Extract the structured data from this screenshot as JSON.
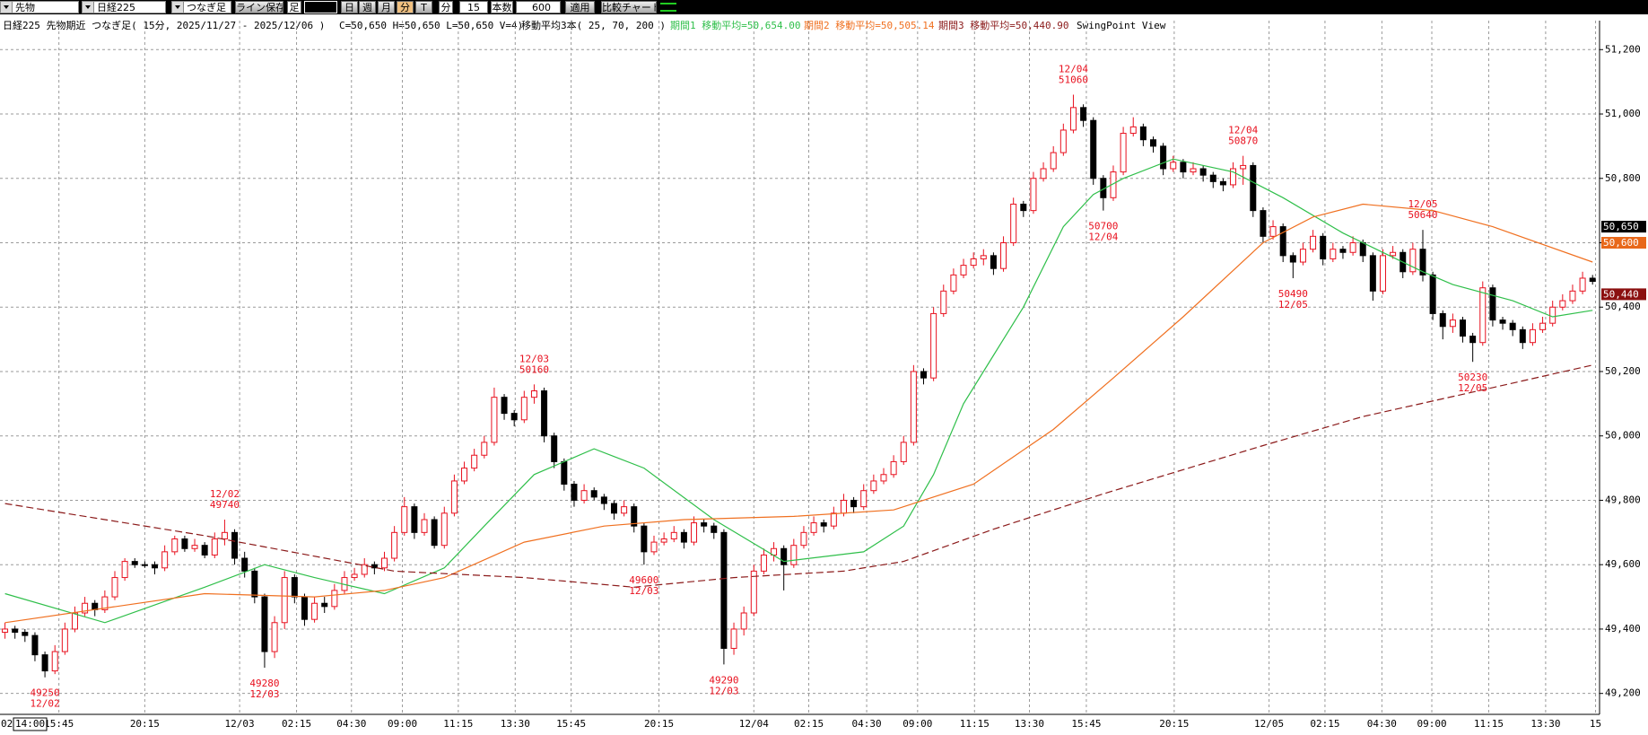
{
  "toolbar": {
    "market": "先物",
    "index": "日経225",
    "bar_type": "つなぎ足",
    "save": "ライン保存",
    "foot": "足",
    "periods": [
      "日",
      "週",
      "月",
      "分",
      "T"
    ],
    "unit": "分",
    "interval": "15",
    "count_label": "本数",
    "count": "600",
    "apply": "適用",
    "compare": "比較チャート"
  },
  "chart_data": {
    "type": "candlestick",
    "title": "日経225 先物期近 つなぎ足( 15分, 2025/11/27 - 2025/12/06 )",
    "ohlc_info": "C=50,650 H=50,650 L=50,650 V=4)",
    "ma_info": "移動平均3本( 25, 70, 200 )",
    "view_label": "SwingPoint View",
    "cursor_date": "02",
    "cursor_time": "14:00",
    "up_color": "#e8101e",
    "down_color": "#000000",
    "ylim": [
      49135,
      51290
    ],
    "yticks": [
      {
        "value": 49200,
        "label": "49,200"
      },
      {
        "value": 49400,
        "label": "49,400"
      },
      {
        "value": 49600,
        "label": "49,600"
      },
      {
        "value": 49800,
        "label": "49,800"
      },
      {
        "value": 50000,
        "label": "50,000"
      },
      {
        "value": 50200,
        "label": "50,200"
      },
      {
        "value": 50400,
        "label": "50,400"
      },
      {
        "value": 50600,
        "label": "50,600"
      },
      {
        "value": 50800,
        "label": "50,800"
      },
      {
        "value": 51000,
        "label": "51,000"
      },
      {
        "value": 51200,
        "label": "51,200"
      }
    ],
    "xlim": [
      -0.5,
      159.7
    ],
    "xticks": [
      {
        "value": 5.4,
        "label": "15:45"
      },
      {
        "value": 14,
        "label": "20:15"
      },
      {
        "value": 23.5,
        "label": "12/03"
      },
      {
        "value": 29.2,
        "label": "02:15"
      },
      {
        "value": 34.7,
        "label": "04:30"
      },
      {
        "value": 39.8,
        "label": "09:00"
      },
      {
        "value": 45.4,
        "label": "11:15"
      },
      {
        "value": 51.1,
        "label": "13:30"
      },
      {
        "value": 56.7,
        "label": "15:45"
      },
      {
        "value": 65.5,
        "label": "20:15"
      },
      {
        "value": 75,
        "label": "12/04"
      },
      {
        "value": 80.5,
        "label": "02:15"
      },
      {
        "value": 86.3,
        "label": "04:30"
      },
      {
        "value": 91.4,
        "label": "09:00"
      },
      {
        "value": 97.1,
        "label": "11:15"
      },
      {
        "value": 102.6,
        "label": "13:30"
      },
      {
        "value": 108.3,
        "label": "15:45"
      },
      {
        "value": 117.1,
        "label": "20:15"
      },
      {
        "value": 126.6,
        "label": "12/05"
      },
      {
        "value": 132.2,
        "label": "02:15"
      },
      {
        "value": 137.9,
        "label": "04:30"
      },
      {
        "value": 142.9,
        "label": "09:00"
      },
      {
        "value": 148.6,
        "label": "11:15"
      },
      {
        "value": 154.3,
        "label": "13:30"
      },
      {
        "value": 159.3,
        "label": "15"
      }
    ],
    "grid": true,
    "ohlc": [
      [
        49390,
        49420,
        49370,
        49400
      ],
      [
        49400,
        49410,
        49370,
        49390
      ],
      [
        49390,
        49400,
        49360,
        49380
      ],
      [
        49380,
        49390,
        49300,
        49320
      ],
      [
        49320,
        49330,
        49250,
        49270
      ],
      [
        49270,
        49350,
        49260,
        49330
      ],
      [
        49330,
        49420,
        49320,
        49400
      ],
      [
        49400,
        49470,
        49390,
        49450
      ],
      [
        49450,
        49500,
        49440,
        49480
      ],
      [
        49480,
        49490,
        49440,
        49460
      ],
      [
        49460,
        49520,
        49450,
        49500
      ],
      [
        49500,
        49580,
        49490,
        49560
      ],
      [
        49560,
        49620,
        49550,
        49610
      ],
      [
        49610,
        49620,
        49590,
        49600
      ],
      [
        49600,
        49610,
        49590,
        49600
      ],
      [
        49600,
        49610,
        49570,
        49590
      ],
      [
        49590,
        49660,
        49580,
        49640
      ],
      [
        49640,
        49690,
        49630,
        49680
      ],
      [
        49680,
        49690,
        49640,
        49650
      ],
      [
        49650,
        49680,
        49640,
        49660
      ],
      [
        49660,
        49670,
        49620,
        49630
      ],
      [
        49630,
        49700,
        49620,
        49680
      ],
      [
        49680,
        49740,
        49660,
        49700
      ],
      [
        49700,
        49710,
        49600,
        49620
      ],
      [
        49620,
        49640,
        49560,
        49580
      ],
      [
        49580,
        49590,
        49480,
        49500
      ],
      [
        49500,
        49510,
        49280,
        49330
      ],
      [
        49330,
        49440,
        49310,
        49420
      ],
      [
        49420,
        49580,
        49400,
        49560
      ],
      [
        49560,
        49570,
        49480,
        49500
      ],
      [
        49500,
        49510,
        49410,
        49430
      ],
      [
        49430,
        49500,
        49420,
        49480
      ],
      [
        49480,
        49500,
        49450,
        49470
      ],
      [
        49470,
        49540,
        49460,
        49520
      ],
      [
        49520,
        49580,
        49510,
        49560
      ],
      [
        49560,
        49590,
        49550,
        49570
      ],
      [
        49570,
        49620,
        49560,
        49600
      ],
      [
        49600,
        49610,
        49570,
        49590
      ],
      [
        49590,
        49640,
        49580,
        49620
      ],
      [
        49620,
        49720,
        49610,
        49700
      ],
      [
        49700,
        49810,
        49690,
        49780
      ],
      [
        49780,
        49790,
        49680,
        49700
      ],
      [
        49700,
        49760,
        49690,
        49740
      ],
      [
        49740,
        49750,
        49650,
        49660
      ],
      [
        49660,
        49780,
        49650,
        49760
      ],
      [
        49760,
        49880,
        49750,
        49860
      ],
      [
        49860,
        49920,
        49850,
        49900
      ],
      [
        49900,
        49960,
        49890,
        49940
      ],
      [
        49940,
        50000,
        49930,
        49980
      ],
      [
        49980,
        50150,
        49970,
        50120
      ],
      [
        50120,
        50130,
        50050,
        50070
      ],
      [
        50070,
        50080,
        50030,
        50050
      ],
      [
        50050,
        50140,
        50040,
        50120
      ],
      [
        50120,
        50160,
        50100,
        50140
      ],
      [
        50140,
        50150,
        49980,
        50000
      ],
      [
        50000,
        50010,
        49900,
        49920
      ],
      [
        49920,
        49930,
        49830,
        49850
      ],
      [
        49850,
        49860,
        49780,
        49800
      ],
      [
        49800,
        49850,
        49790,
        49830
      ],
      [
        49830,
        49840,
        49800,
        49810
      ],
      [
        49810,
        49820,
        49770,
        49790
      ],
      [
        49790,
        49800,
        49740,
        49760
      ],
      [
        49760,
        49800,
        49750,
        49780
      ],
      [
        49780,
        49790,
        49700,
        49720
      ],
      [
        49720,
        49730,
        49600,
        49640
      ],
      [
        49640,
        49690,
        49630,
        49670
      ],
      [
        49670,
        49700,
        49660,
        49680
      ],
      [
        49680,
        49720,
        49670,
        49700
      ],
      [
        49700,
        49710,
        49650,
        49670
      ],
      [
        49670,
        49750,
        49660,
        49730
      ],
      [
        49730,
        49740,
        49700,
        49720
      ],
      [
        49720,
        49730,
        49680,
        49700
      ],
      [
        49700,
        49710,
        49290,
        49340
      ],
      [
        49340,
        49420,
        49320,
        49400
      ],
      [
        49400,
        49470,
        49380,
        49450
      ],
      [
        49450,
        49600,
        49440,
        49580
      ],
      [
        49580,
        49650,
        49570,
        49630
      ],
      [
        49630,
        49670,
        49610,
        49650
      ],
      [
        49650,
        49660,
        49520,
        49600
      ],
      [
        49600,
        49680,
        49590,
        49660
      ],
      [
        49660,
        49720,
        49650,
        49700
      ],
      [
        49700,
        49750,
        49690,
        49730
      ],
      [
        49730,
        49740,
        49700,
        49720
      ],
      [
        49720,
        49780,
        49710,
        49760
      ],
      [
        49760,
        49820,
        49750,
        49800
      ],
      [
        49800,
        49810,
        49760,
        49780
      ],
      [
        49780,
        49850,
        49770,
        49830
      ],
      [
        49830,
        49880,
        49820,
        49860
      ],
      [
        49860,
        49900,
        49850,
        49880
      ],
      [
        49880,
        49940,
        49870,
        49920
      ],
      [
        49920,
        50000,
        49910,
        49980
      ],
      [
        49980,
        50220,
        49970,
        50200
      ],
      [
        50200,
        50210,
        50160,
        50180
      ],
      [
        50180,
        50400,
        50170,
        50380
      ],
      [
        50380,
        50470,
        50370,
        50450
      ],
      [
        50450,
        50520,
        50440,
        50500
      ],
      [
        50500,
        50550,
        50490,
        50530
      ],
      [
        50530,
        50570,
        50520,
        50550
      ],
      [
        50550,
        50580,
        50530,
        50560
      ],
      [
        50560,
        50570,
        50500,
        50520
      ],
      [
        50520,
        50620,
        50510,
        50600
      ],
      [
        50600,
        50740,
        50590,
        50720
      ],
      [
        50720,
        50730,
        50680,
        50700
      ],
      [
        50700,
        50820,
        50690,
        50800
      ],
      [
        50800,
        50850,
        50790,
        50830
      ],
      [
        50830,
        50900,
        50820,
        50880
      ],
      [
        50880,
        50970,
        50870,
        50950
      ],
      [
        50950,
        51060,
        50940,
        51020
      ],
      [
        51020,
        51030,
        50960,
        50980
      ],
      [
        50980,
        50990,
        50780,
        50800
      ],
      [
        50800,
        50810,
        50700,
        50740
      ],
      [
        50740,
        50840,
        50730,
        50820
      ],
      [
        50820,
        50960,
        50810,
        50940
      ],
      [
        50940,
        50990,
        50930,
        50960
      ],
      [
        50960,
        50970,
        50900,
        50920
      ],
      [
        50920,
        50930,
        50880,
        50900
      ],
      [
        50900,
        50910,
        50810,
        50830
      ],
      [
        50830,
        50870,
        50820,
        50850
      ],
      [
        50850,
        50860,
        50800,
        50820
      ],
      [
        50820,
        50850,
        50810,
        50830
      ],
      [
        50830,
        50840,
        50790,
        50810
      ],
      [
        50810,
        50820,
        50770,
        50790
      ],
      [
        50790,
        50800,
        50760,
        50780
      ],
      [
        50780,
        50850,
        50770,
        50830
      ],
      [
        50830,
        50870,
        50780,
        50840
      ],
      [
        50840,
        50850,
        50680,
        50700
      ],
      [
        50700,
        50710,
        50600,
        50620
      ],
      [
        50620,
        50670,
        50610,
        50650
      ],
      [
        50650,
        50660,
        50540,
        50560
      ],
      [
        50560,
        50570,
        50490,
        50540
      ],
      [
        50540,
        50600,
        50530,
        50580
      ],
      [
        50580,
        50640,
        50570,
        50620
      ],
      [
        50620,
        50630,
        50530,
        50550
      ],
      [
        50550,
        50600,
        50540,
        50580
      ],
      [
        50580,
        50590,
        50550,
        50570
      ],
      [
        50570,
        50620,
        50560,
        50600
      ],
      [
        50600,
        50610,
        50540,
        50560
      ],
      [
        50560,
        50570,
        50420,
        50450
      ],
      [
        50450,
        50580,
        50440,
        50560
      ],
      [
        50560,
        50590,
        50550,
        50570
      ],
      [
        50570,
        50580,
        50490,
        50510
      ],
      [
        50510,
        50600,
        50500,
        50580
      ],
      [
        50580,
        50640,
        50480,
        50500
      ],
      [
        50500,
        50510,
        50360,
        50380
      ],
      [
        50380,
        50390,
        50300,
        50340
      ],
      [
        50340,
        50380,
        50320,
        50360
      ],
      [
        50360,
        50370,
        50290,
        50310
      ],
      [
        50310,
        50320,
        50230,
        50290
      ],
      [
        50290,
        50480,
        50280,
        50460
      ],
      [
        50460,
        50470,
        50340,
        50360
      ],
      [
        50360,
        50370,
        50330,
        50350
      ],
      [
        50350,
        50360,
        50310,
        50330
      ],
      [
        50330,
        50340,
        50270,
        50290
      ],
      [
        50290,
        50350,
        50280,
        50330
      ],
      [
        50330,
        50370,
        50320,
        50350
      ],
      [
        50350,
        50420,
        50340,
        50400
      ],
      [
        50400,
        50440,
        50390,
        50420
      ],
      [
        50420,
        50470,
        50410,
        50450
      ],
      [
        50450,
        50510,
        50440,
        50490
      ],
      [
        50490,
        50500,
        50470,
        50480
      ]
    ],
    "series": [
      {
        "name": "期間1 移動平均=50,654.00",
        "color": "#2fbf4a",
        "style": "solid",
        "x": [
          0,
          10,
          20,
          26,
          31,
          38,
          44,
          48,
          53,
          59,
          64,
          71,
          78,
          86,
          90,
          93,
          96,
          99,
          102,
          106,
          109,
          112,
          117,
          123,
          128,
          134,
          138,
          142,
          145,
          151,
          155,
          159
        ],
        "values": [
          49510,
          49420,
          49530,
          49600,
          49560,
          49510,
          49590,
          49720,
          49880,
          49960,
          49900,
          49740,
          49610,
          49640,
          49720,
          49880,
          50100,
          50250,
          50400,
          50650,
          50750,
          50800,
          50860,
          50820,
          50740,
          50630,
          50570,
          50510,
          50470,
          50420,
          50370,
          50390
        ]
      },
      {
        "name": "期間2 移動平均=50,505.14",
        "color": "#f07020",
        "style": "solid",
        "x": [
          0,
          20,
          31,
          38,
          44,
          52,
          60,
          68,
          79,
          89,
          97,
          105,
          111,
          118,
          126,
          131,
          136,
          143,
          149,
          159
        ],
        "values": [
          49420,
          49510,
          49500,
          49520,
          49560,
          49670,
          49720,
          49740,
          49750,
          49770,
          49850,
          50020,
          50180,
          50370,
          50600,
          50680,
          50720,
          50700,
          50650,
          50540
        ]
      },
      {
        "name": "期間3 移動平均=50,440.90",
        "color": "#8b1a1a",
        "style": "dashed",
        "x": [
          0,
          20,
          39,
          52,
          63,
          73,
          84,
          90,
          99,
          110,
          126,
          136,
          149,
          159
        ],
        "values": [
          49790,
          49690,
          49580,
          49560,
          49530,
          49560,
          49580,
          49610,
          49710,
          49820,
          49970,
          50060,
          50150,
          50220
        ]
      }
    ],
    "price_markers": [
      {
        "value": 50650,
        "label": "50,650",
        "color": "#000000"
      },
      {
        "value": 50600,
        "label": "50,600",
        "color": "#e8681a"
      },
      {
        "value": 50440,
        "label": "50,440",
        "color": "#8b1010"
      }
    ],
    "swing_color": "#e8101e",
    "swing_points": [
      {
        "index": 4,
        "date": "12/02",
        "price": 49250,
        "at": "low"
      },
      {
        "index": 22,
        "date": "12/02",
        "price": 49740,
        "at": "high"
      },
      {
        "index": 26,
        "date": "12/03",
        "price": 49280,
        "at": "low"
      },
      {
        "index": 53,
        "date": "12/03",
        "price": 50160,
        "at": "high"
      },
      {
        "index": 64,
        "date": "12/03",
        "price": 49600,
        "at": "low"
      },
      {
        "index": 72,
        "date": "12/03",
        "price": 49290,
        "at": "low"
      },
      {
        "index": 107,
        "date": "12/04",
        "price": 51060,
        "at": "high"
      },
      {
        "index": 110,
        "date": "12/04",
        "price": 50700,
        "at": "low"
      },
      {
        "index": 124,
        "date": "12/04",
        "price": 50870,
        "at": "high"
      },
      {
        "index": 129,
        "date": "12/05",
        "price": 50490,
        "at": "low"
      },
      {
        "index": 142,
        "date": "12/05",
        "price": 50640,
        "at": "high"
      },
      {
        "index": 147,
        "date": "12/05",
        "price": 50230,
        "at": "low"
      }
    ]
  }
}
